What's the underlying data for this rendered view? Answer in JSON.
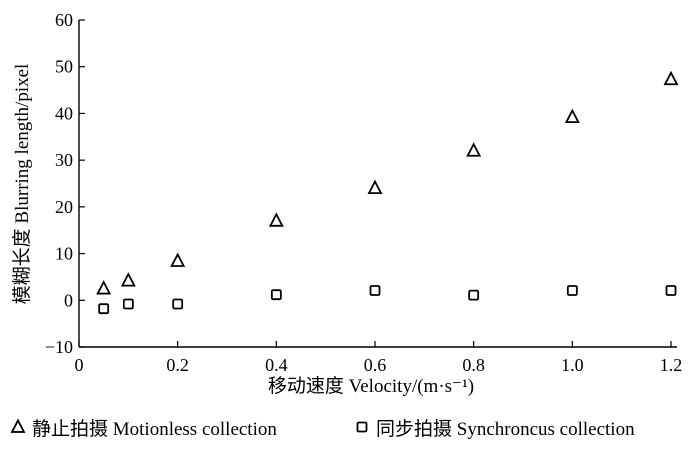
{
  "chart_data": {
    "type": "scatter",
    "title": "",
    "xlabel": "移动速度 Velocity/(m·s⁻¹)",
    "ylabel": "模糊长度 Blurring length/pixel",
    "xlim": [
      0,
      1.2
    ],
    "ylim": [
      -10,
      60
    ],
    "xticks": [
      "0",
      "0.2",
      "0.4",
      "0.6",
      "0.8",
      "1.0",
      "1.2"
    ],
    "yticks": [
      "−10",
      "0",
      "10",
      "20",
      "30",
      "40",
      "50",
      "60"
    ],
    "grid": false,
    "legend_position": "bottom",
    "series": [
      {
        "name": "静止拍摄 Motionless collection",
        "marker": "triangle",
        "x": [
          0.05,
          0.1,
          0.2,
          0.4,
          0.6,
          0.8,
          1.0,
          1.2
        ],
        "y": [
          2.5,
          4.2,
          8.4,
          17.0,
          24.0,
          32.0,
          39.2,
          47.3
        ]
      },
      {
        "name": "同步拍摄 Synchroncus collection",
        "marker": "square",
        "x": [
          0.05,
          0.1,
          0.2,
          0.4,
          0.6,
          0.8,
          1.0,
          1.2
        ],
        "y": [
          -1.8,
          -0.8,
          -0.8,
          1.2,
          2.1,
          1.1,
          2.1,
          2.1
        ]
      }
    ]
  }
}
